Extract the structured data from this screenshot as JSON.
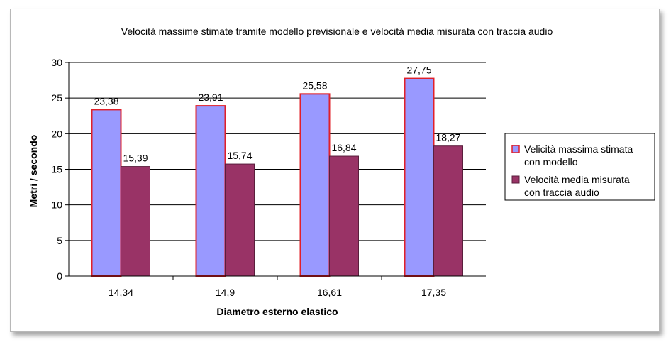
{
  "chart_data": {
    "type": "bar",
    "title": "Velocità massime stimate tramite modello previsionale e velocità media misurata con traccia audio",
    "xlabel": "Diametro esterno elastico",
    "ylabel": "Metri / secondo",
    "categories": [
      "14,34",
      "14,9",
      "16,61",
      "17,35"
    ],
    "ylim": [
      0,
      30
    ],
    "yticks": [
      0,
      5,
      10,
      15,
      20,
      25,
      30
    ],
    "ytick_labels": [
      "0",
      "5",
      "10",
      "15",
      "20",
      "25",
      "30"
    ],
    "grid": true,
    "legend_position": "right",
    "series": [
      {
        "name": "Velicità massima stimata con modello",
        "legend_lines": [
          "Velicità massima stimata",
          "con modello"
        ],
        "values": [
          23.38,
          23.91,
          25.58,
          27.75
        ],
        "labels": [
          "23,38",
          "23,91",
          "25,58",
          "27,75"
        ],
        "color": "#9999ff",
        "border": "#e0202a"
      },
      {
        "name": "Velocità media misurata con traccia audio",
        "legend_lines": [
          "Velocità media misurata",
          "con traccia audio"
        ],
        "values": [
          15.39,
          15.74,
          16.84,
          18.27
        ],
        "labels": [
          "15,39",
          "15,74",
          "16,84",
          "18,27"
        ],
        "color": "#993366",
        "border": "#5a1e3c"
      }
    ]
  }
}
